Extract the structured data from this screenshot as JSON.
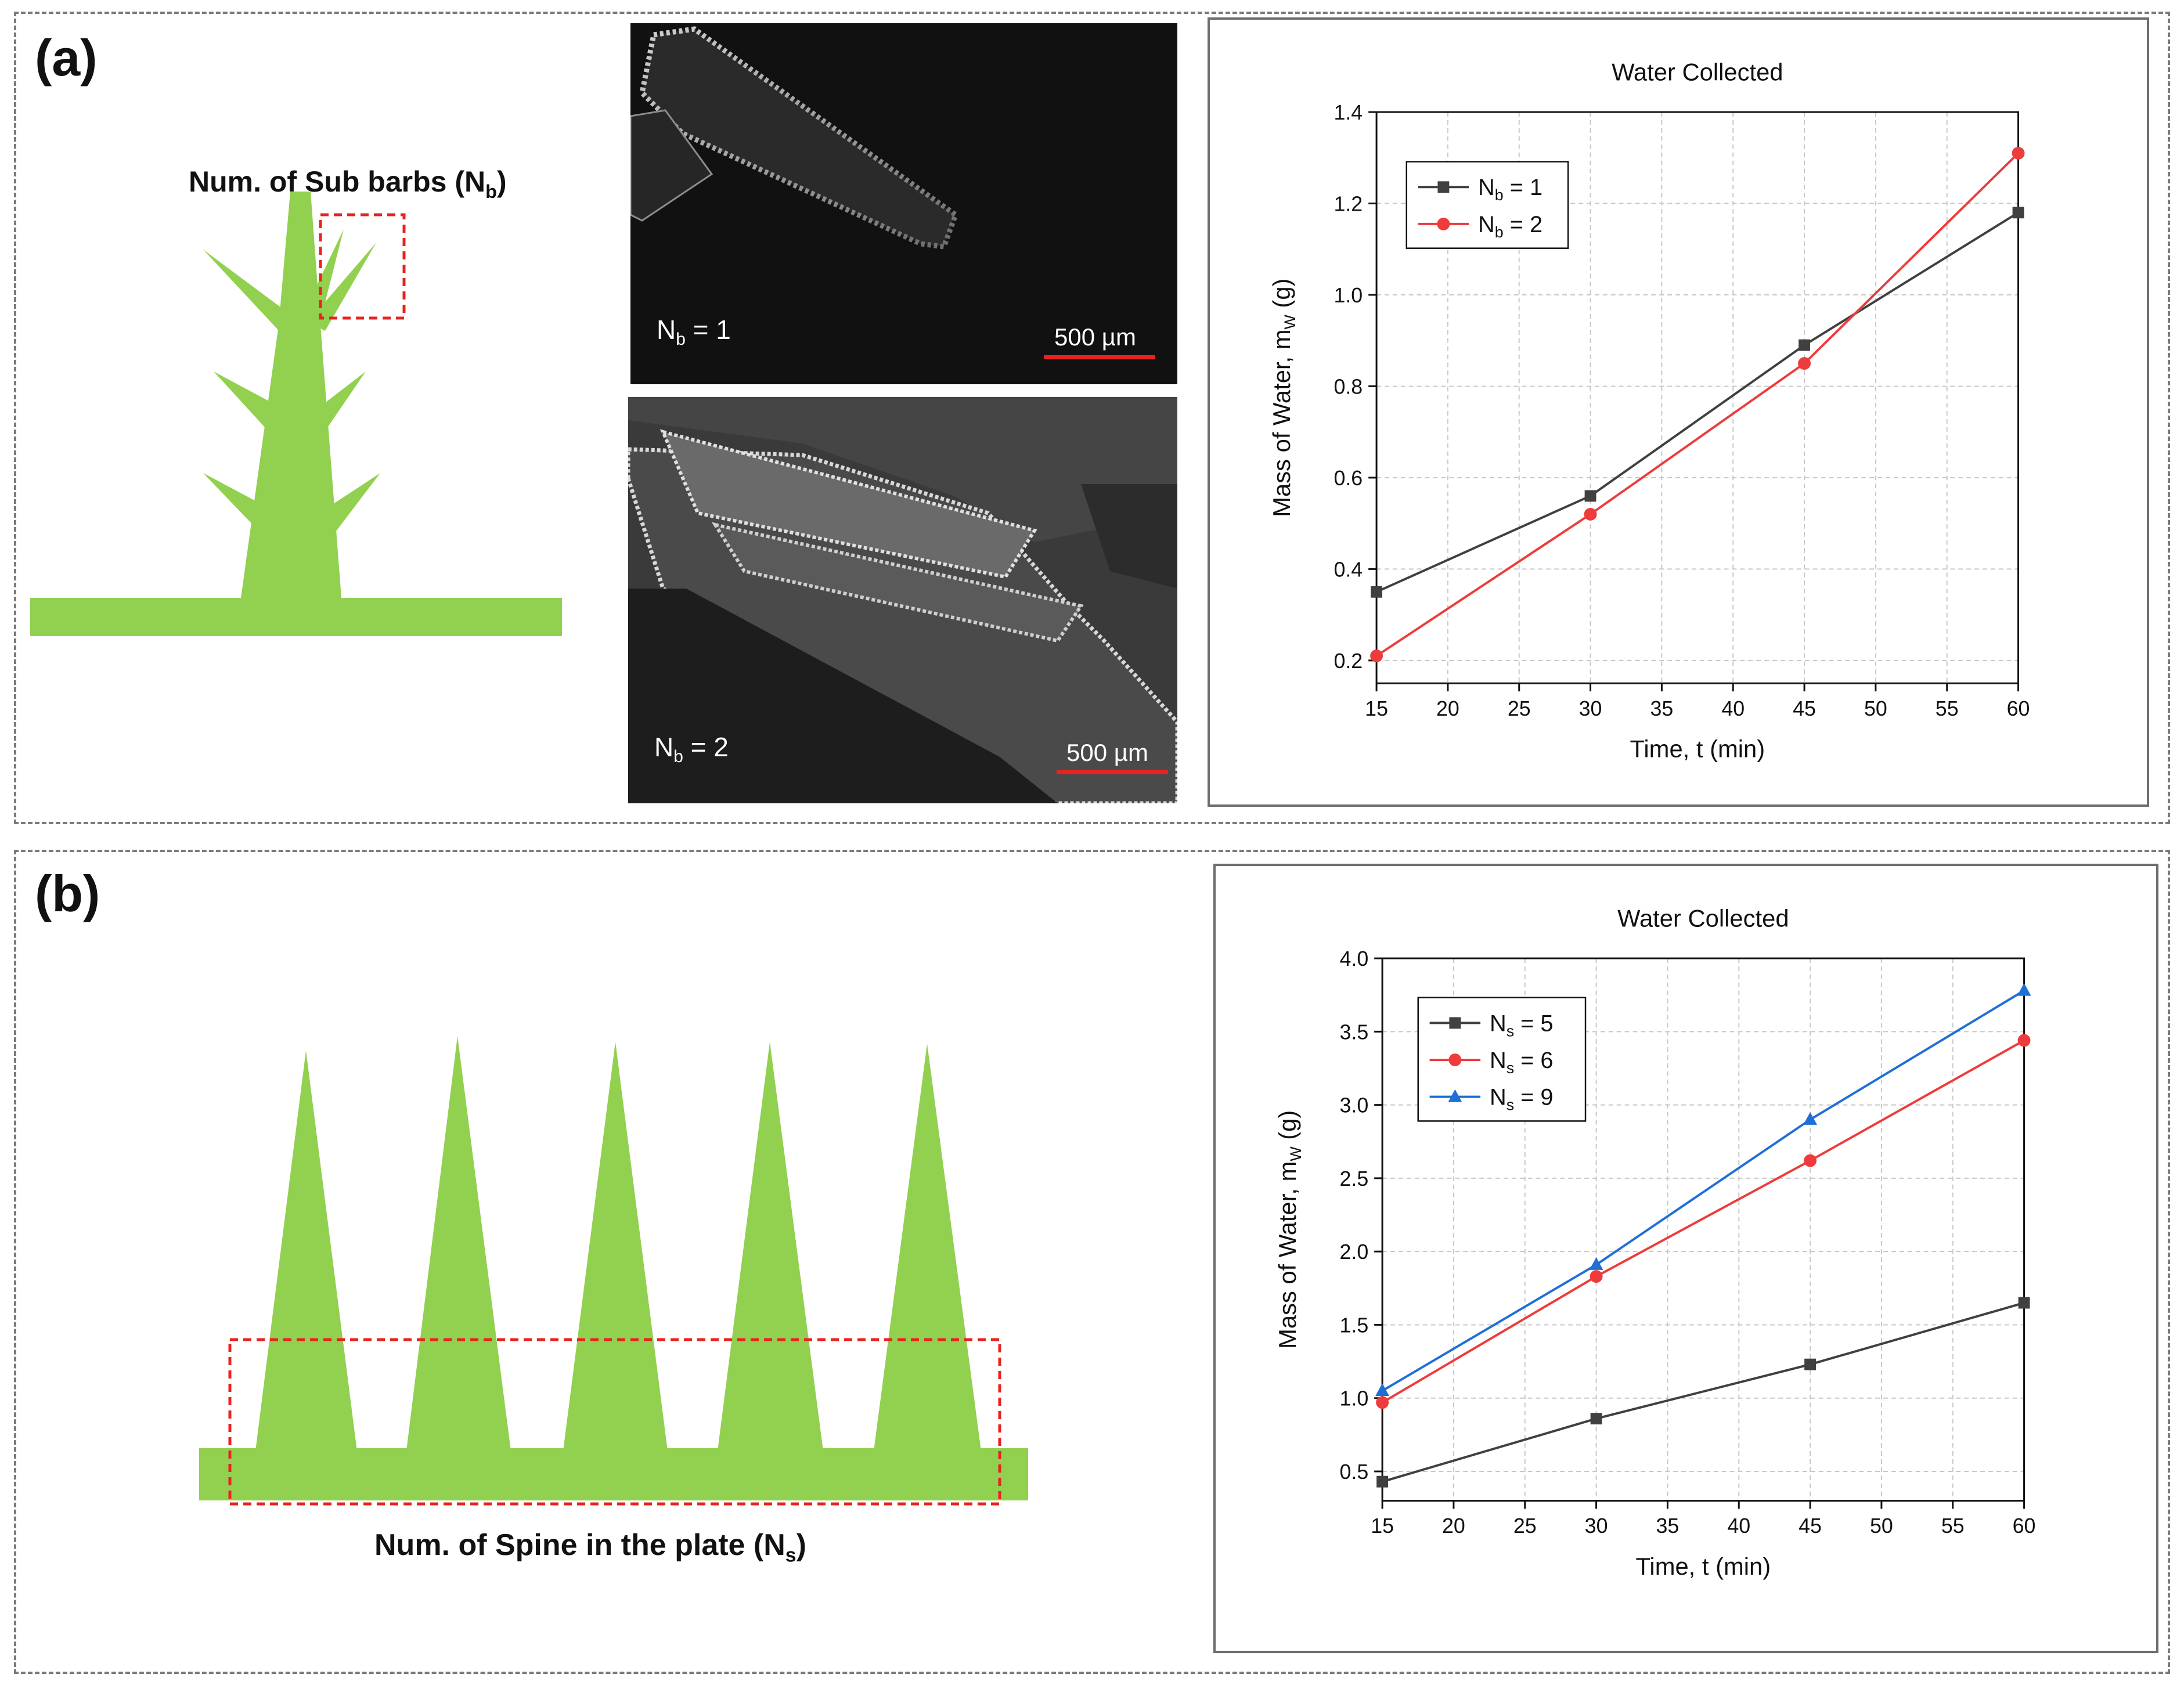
{
  "panel_a": {
    "label": "(a)",
    "diagram_caption": "Num. of Sub barbs (N",
    "diagram_caption_sub": "b",
    "diagram_caption_end": ")",
    "sem1_label": "N",
    "sem1_label_sub": "b",
    "sem1_label_value": " = 1",
    "sem1_scale": "500 µm",
    "sem2_label": "N",
    "sem2_label_sub": "b",
    "sem2_label_value": " = 2",
    "sem2_scale": "500 µm"
  },
  "panel_b": {
    "label": "(b)",
    "diagram_caption": "Num. of Spine in the plate (N",
    "diagram_caption_sub": "s",
    "diagram_caption_end": ")"
  },
  "colors": {
    "green": "#92d050",
    "red_dashed": "#e8231f",
    "series_black": "#404040",
    "series_red": "#ee3b3b",
    "series_blue": "#1f6fd6"
  },
  "chart_data": [
    {
      "type": "line",
      "title": "Water Collected",
      "xlabel": "Time, t (min)",
      "ylabel": "Mass of Water, m",
      "ylabel_sub": "W",
      "ylabel_end": " (g)",
      "xlim": [
        15,
        60
      ],
      "ylim": [
        0.15,
        1.4
      ],
      "xticks": [
        15,
        20,
        25,
        30,
        35,
        40,
        45,
        50,
        55,
        60
      ],
      "yticks": [
        0.2,
        0.4,
        0.6,
        0.8,
        1.0,
        1.2,
        1.4
      ],
      "ytick_labels": [
        "0.2",
        "0.4",
        "0.6",
        "0.8",
        "1.0",
        "1.2",
        "1.4"
      ],
      "grid": true,
      "legend_position": "top-left",
      "x": [
        15,
        30,
        45,
        60
      ],
      "series": [
        {
          "name": "N",
          "name_sub": "b",
          "name_end": " = 1",
          "values": [
            0.35,
            0.56,
            0.89,
            1.18
          ],
          "color": "#404040",
          "marker": "square"
        },
        {
          "name": "N",
          "name_sub": "b",
          "name_end": " = 2",
          "values": [
            0.21,
            0.52,
            0.85,
            1.31
          ],
          "color": "#ee3b3b",
          "marker": "circle"
        }
      ]
    },
    {
      "type": "line",
      "title": "Water Collected",
      "xlabel": "Time, t (min)",
      "ylabel": "Mass of Water, m",
      "ylabel_sub": "W",
      "ylabel_end": " (g)",
      "xlim": [
        15,
        60
      ],
      "ylim": [
        0.3,
        4.0
      ],
      "xticks": [
        15,
        20,
        25,
        30,
        35,
        40,
        45,
        50,
        55,
        60
      ],
      "yticks": [
        0.5,
        1.0,
        1.5,
        2.0,
        2.5,
        3.0,
        3.5,
        4.0
      ],
      "ytick_labels": [
        "0.5",
        "1.0",
        "1.5",
        "2.0",
        "2.5",
        "3.0",
        "3.5",
        "4.0"
      ],
      "grid": true,
      "legend_position": "top-left",
      "x": [
        15,
        30,
        45,
        60
      ],
      "series": [
        {
          "name": "N",
          "name_sub": "s",
          "name_end": " = 5",
          "values": [
            0.43,
            0.86,
            1.23,
            1.65
          ],
          "color": "#404040",
          "marker": "square"
        },
        {
          "name": "N",
          "name_sub": "s",
          "name_end": " = 6",
          "values": [
            0.97,
            1.83,
            2.62,
            3.44
          ],
          "color": "#ee3b3b",
          "marker": "circle"
        },
        {
          "name": "N",
          "name_sub": "s",
          "name_end": " = 9",
          "values": [
            1.05,
            1.91,
            2.9,
            3.78
          ],
          "color": "#1f6fd6",
          "marker": "triangle"
        }
      ]
    }
  ]
}
